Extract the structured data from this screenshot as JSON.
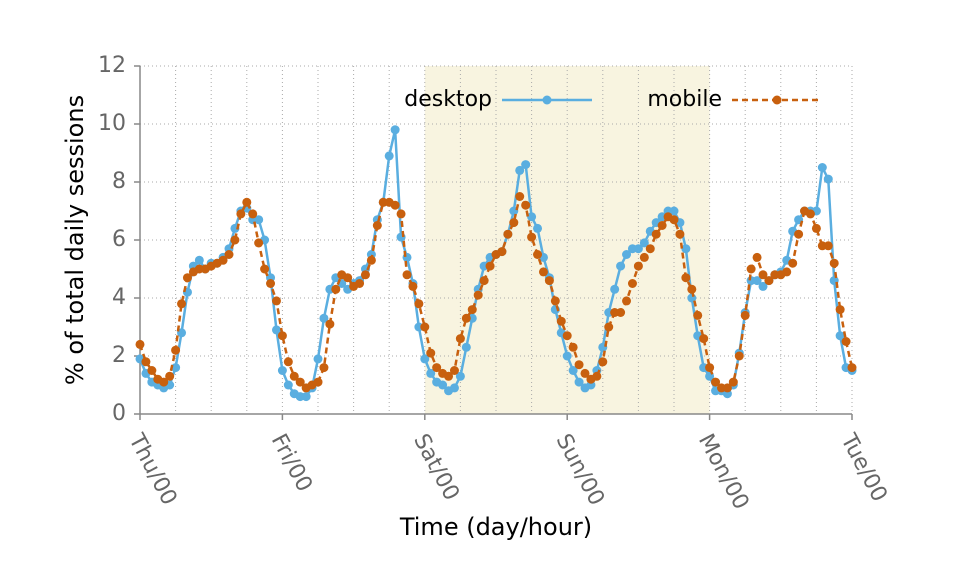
{
  "chart_data": {
    "type": "line",
    "xlabel": "Time (day/hour)",
    "ylabel": "% of total daily sessions",
    "x": [
      0,
      1,
      2,
      3,
      4,
      5,
      6,
      7,
      8,
      9,
      10,
      11,
      12,
      13,
      14,
      15,
      16,
      17,
      18,
      19,
      20,
      21,
      22,
      23,
      24,
      25,
      26,
      27,
      28,
      29,
      30,
      31,
      32,
      33,
      34,
      35,
      36,
      37,
      38,
      39,
      40,
      41,
      42,
      43,
      44,
      45,
      46,
      47,
      48,
      49,
      50,
      51,
      52,
      53,
      54,
      55,
      56,
      57,
      58,
      59,
      60,
      61,
      62,
      63,
      64,
      65,
      66,
      67,
      68,
      69,
      70,
      71,
      72,
      73,
      74,
      75,
      76,
      77,
      78,
      79,
      80,
      81,
      82,
      83,
      84,
      85,
      86,
      87,
      88,
      89,
      90,
      91,
      92,
      93,
      94,
      95,
      96,
      97,
      98,
      99,
      100,
      101,
      102,
      103,
      104,
      105,
      106,
      107,
      108,
      109,
      110,
      111,
      112,
      113,
      114,
      115,
      116,
      117,
      118,
      119,
      120
    ],
    "series": [
      {
        "name": "desktop",
        "color": "#5aaee0",
        "dashed": false,
        "values": [
          1.9,
          1.4,
          1.1,
          1.0,
          0.9,
          1.0,
          1.6,
          2.8,
          4.2,
          5.1,
          5.3,
          5.0,
          5.2,
          5.2,
          5.4,
          5.7,
          6.4,
          7.0,
          7.1,
          6.7,
          6.7,
          6.0,
          4.7,
          2.9,
          1.5,
          1.0,
          0.7,
          0.6,
          0.6,
          0.9,
          1.9,
          3.3,
          4.3,
          4.7,
          4.5,
          4.3,
          4.5,
          4.6,
          5.0,
          5.5,
          6.7,
          7.3,
          8.9,
          9.8,
          6.1,
          5.4,
          4.5,
          3.0,
          1.9,
          1.4,
          1.1,
          1.0,
          0.8,
          0.9,
          1.3,
          2.3,
          3.3,
          4.3,
          5.1,
          5.4,
          5.5,
          5.6,
          6.2,
          7.0,
          8.4,
          8.6,
          6.8,
          6.4,
          5.4,
          4.7,
          3.6,
          2.8,
          2.0,
          1.5,
          1.1,
          0.9,
          1.0,
          1.5,
          2.3,
          3.5,
          4.3,
          5.1,
          5.5,
          5.7,
          5.7,
          5.9,
          6.3,
          6.6,
          6.8,
          7.0,
          7.0,
          6.6,
          5.7,
          4.0,
          2.7,
          1.6,
          1.3,
          0.8,
          0.8,
          0.7,
          1.0,
          2.1,
          3.5,
          4.6,
          4.6,
          4.4,
          4.6,
          4.8,
          4.9,
          5.3,
          6.3,
          6.7,
          7.0,
          7.0,
          7.0,
          8.5,
          8.1,
          4.6,
          2.7,
          1.6,
          1.5
        ]
      },
      {
        "name": "mobile",
        "color": "#c8600e",
        "dashed": true,
        "values": [
          2.4,
          1.8,
          1.5,
          1.2,
          1.1,
          1.3,
          2.2,
          3.8,
          4.7,
          4.9,
          5.0,
          5.0,
          5.1,
          5.2,
          5.3,
          5.5,
          6.0,
          6.9,
          7.3,
          6.9,
          5.9,
          5.0,
          4.5,
          3.9,
          2.7,
          1.8,
          1.3,
          1.1,
          0.9,
          1.0,
          1.1,
          1.6,
          3.1,
          4.3,
          4.8,
          4.7,
          4.4,
          4.5,
          4.8,
          5.3,
          6.5,
          7.3,
          7.3,
          7.2,
          6.9,
          4.8,
          4.4,
          3.8,
          3.0,
          2.1,
          1.6,
          1.4,
          1.3,
          1.5,
          2.6,
          3.3,
          3.6,
          4.1,
          4.6,
          5.1,
          5.5,
          5.6,
          6.2,
          6.6,
          7.5,
          7.2,
          6.1,
          5.5,
          4.9,
          4.6,
          3.9,
          3.2,
          2.7,
          2.3,
          1.7,
          1.4,
          1.2,
          1.3,
          1.8,
          3.0,
          3.5,
          3.5,
          3.9,
          4.5,
          5.1,
          5.4,
          5.7,
          6.2,
          6.5,
          6.8,
          6.7,
          6.2,
          4.7,
          4.3,
          3.4,
          2.6,
          1.6,
          1.1,
          0.9,
          0.9,
          1.1,
          2.0,
          3.4,
          5.0,
          5.4,
          4.8,
          4.6,
          4.8,
          4.8,
          4.9,
          5.2,
          6.2,
          7.0,
          6.9,
          6.4,
          5.8,
          5.8,
          5.2,
          3.6,
          2.5,
          1.6
        ]
      }
    ],
    "xlim": [
      0,
      120
    ],
    "xticks": [
      {
        "value": 0,
        "label": "Thu/00"
      },
      {
        "value": 24,
        "label": "Fri/00"
      },
      {
        "value": 48,
        "label": "Sat/00"
      },
      {
        "value": 72,
        "label": "Sun/00"
      },
      {
        "value": 96,
        "label": "Mon/00"
      },
      {
        "value": 120,
        "label": "Tue/00"
      }
    ],
    "xminorticks": [
      6,
      12,
      18,
      30,
      36,
      42,
      54,
      60,
      66,
      78,
      84,
      90,
      102,
      108,
      114
    ],
    "ylim": [
      0,
      12
    ],
    "yticks": [
      0,
      2,
      4,
      6,
      8,
      10,
      12
    ],
    "shaded_region": [
      48,
      96
    ],
    "shade_color": "#f8f4e0",
    "grid": true,
    "legend": "top right"
  }
}
